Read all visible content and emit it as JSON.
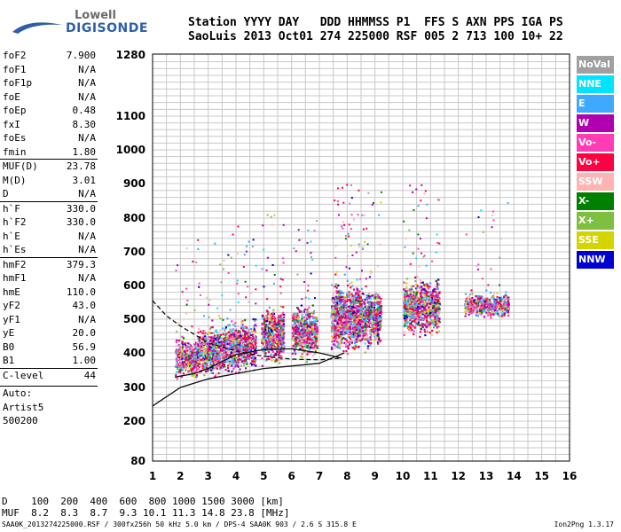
{
  "logo": {
    "brand_top": "Lowell",
    "brand_bottom": "DIGISONDE"
  },
  "header": {
    "line1": "Station YYYY DAY   DDD HHMMSS P1  FFS S AXN PPS IGA PS",
    "line2": "SaoLuis 2013 Oct01 274 225000 RSF 005 2 713 100 10+ 22"
  },
  "params": [
    {
      "label": "foF2",
      "value": "7.900"
    },
    {
      "label": "foF1",
      "value": "N/A"
    },
    {
      "label": "foF1p",
      "value": "N/A"
    },
    {
      "label": "foE",
      "value": "N/A"
    },
    {
      "label": "foEp",
      "value": "0.48"
    },
    {
      "label": "fxI",
      "value": "8.30"
    },
    {
      "label": "foEs",
      "value": "N/A"
    },
    {
      "label": "fmin",
      "value": "1.80"
    },
    {
      "label": "MUF(D)",
      "value": "23.78"
    },
    {
      "label": "M(D)",
      "value": "3.01"
    },
    {
      "label": "D",
      "value": "N/A"
    },
    {
      "label": "h`F",
      "value": "330.0"
    },
    {
      "label": "h`F2",
      "value": "330.0"
    },
    {
      "label": "h`E",
      "value": "N/A"
    },
    {
      "label": "h`Es",
      "value": "N/A"
    },
    {
      "label": "hmF2",
      "value": "379.3"
    },
    {
      "label": "hmF1",
      "value": "N/A"
    },
    {
      "label": "hmE",
      "value": "110.0"
    },
    {
      "label": "yF2",
      "value": "43.0"
    },
    {
      "label": "yF1",
      "value": "N/A"
    },
    {
      "label": "yE",
      "value": "20.0"
    },
    {
      "label": "B0",
      "value": "56.9"
    },
    {
      "label": "B1",
      "value": "1.00"
    },
    {
      "label": "C-level",
      "value": "44"
    }
  ],
  "auto": {
    "line1": "Auto:",
    "line2": "Artist5",
    "line3": "500200"
  },
  "legend": [
    {
      "label": "NoVal",
      "color": "#a0a0a0"
    },
    {
      "label": "NNE",
      "color": "#00e5ff"
    },
    {
      "label": "E",
      "color": "#3fa9ff"
    },
    {
      "label": "W",
      "color": "#b000b0"
    },
    {
      "label": "Vo-",
      "color": "#ff3cb4"
    },
    {
      "label": "Vo+",
      "color": "#ff0040"
    },
    {
      "label": "SSW",
      "color": "#ffb4b4"
    },
    {
      "label": "X-",
      "color": "#008000"
    },
    {
      "label": "X+",
      "color": "#7fbf40"
    },
    {
      "label": "SSE",
      "color": "#d4d400"
    },
    {
      "label": "NNW",
      "color": "#0000d0"
    }
  ],
  "muf_table": {
    "d_line": "D    100  200  400  600  800 1000 1500 3000 [km]",
    "muf_line": "MUF  8.2  8.3  8.7  9.3 10.1 11.3 14.8 23.8 [MHz]"
  },
  "footer": {
    "left": "SAA0K_2013274225000.RSF / 300fx256h 50 kHz 5.0 km / DPS-4 SAA0K 903 / 2.6 S 315.8 E",
    "right": "Ion2Png 1.3.17"
  },
  "chart_data": {
    "type": "scatter",
    "x_ticks": [
      "1",
      "2",
      "3",
      "4",
      "5",
      "6",
      "7",
      "8",
      "9",
      "10",
      "11",
      "12",
      "13",
      "14",
      "15",
      "16"
    ],
    "y_ticks": [
      "80",
      "200",
      "300",
      "400",
      "500",
      "600",
      "700",
      "800",
      "900",
      "1000",
      "1100",
      "1280"
    ],
    "xlim": [
      1,
      16
    ],
    "ylim": [
      80,
      1280
    ],
    "grid": true,
    "legend_position": "right",
    "echo_clusters": [
      {
        "fmin": 1.8,
        "fmax": 2.6,
        "hmin": 315,
        "hmax": 460
      },
      {
        "fmin": 2.6,
        "fmax": 3.6,
        "hmin": 320,
        "hmax": 490
      },
      {
        "fmin": 3.6,
        "fmax": 4.7,
        "hmin": 325,
        "hmax": 520
      },
      {
        "fmin": 4.9,
        "fmax": 5.7,
        "hmin": 355,
        "hmax": 560
      },
      {
        "fmin": 6.0,
        "fmax": 6.9,
        "hmin": 370,
        "hmax": 560
      },
      {
        "fmin": 7.4,
        "fmax": 8.4,
        "hmin": 380,
        "hmax": 640
      },
      {
        "fmin": 8.3,
        "fmax": 9.2,
        "hmin": 395,
        "hmax": 620
      },
      {
        "fmin": 10.0,
        "fmax": 11.3,
        "hmin": 440,
        "hmax": 640
      },
      {
        "fmin": 12.2,
        "fmax": 13.8,
        "hmin": 500,
        "hmax": 590
      }
    ],
    "profile_curve": {
      "f": [
        1,
        2,
        3,
        4,
        5,
        6,
        7,
        7.9
      ],
      "h": [
        245,
        300,
        325,
        340,
        355,
        362,
        370,
        400
      ]
    },
    "trace_curve_upper": {
      "f": [
        1,
        1.5,
        2,
        2.5,
        3,
        4,
        5,
        6,
        7,
        7.8
      ],
      "h": [
        555,
        510,
        480,
        455,
        430,
        405,
        390,
        382,
        380,
        385
      ]
    },
    "trace_curve_lower": {
      "f": [
        1.8,
        2.5,
        3,
        3.5,
        4,
        5,
        6,
        7,
        7.8
      ],
      "h": [
        330,
        340,
        355,
        375,
        395,
        410,
        412,
        400,
        385
      ]
    }
  }
}
